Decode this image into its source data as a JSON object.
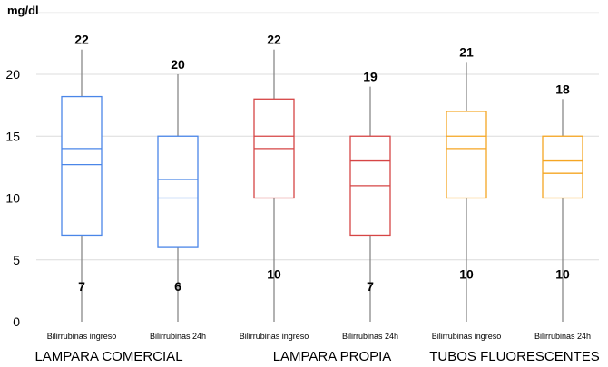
{
  "chart_data": {
    "type": "box",
    "unit_label": "mg/dl",
    "ylim": [
      0,
      25
    ],
    "yticks": [
      0,
      5,
      10,
      15,
      20
    ],
    "grid": true,
    "groups": [
      "LAMPARA COMERCIAL",
      "LAMPARA PROPIA",
      "TUBOS FLUORESCENTES"
    ],
    "boxes": [
      {
        "category": "Bilirrubinas ingreso",
        "group": 0,
        "color": "#4a86e8",
        "min": 0,
        "q1": 7,
        "median": 12.7,
        "mean": 14,
        "q3": 18.2,
        "max": 22,
        "labels": [
          "22",
          "7"
        ]
      },
      {
        "category": "Bilirrubinas 24h",
        "group": 0,
        "color": "#4a86e8",
        "min": 0,
        "q1": 6,
        "median": 10,
        "mean": 11.5,
        "q3": 15,
        "max": 20,
        "labels": [
          "20",
          "6"
        ]
      },
      {
        "category": "Bilirrubinas ingreso",
        "group": 1,
        "color": "#d64545",
        "min": 0,
        "q1": 10,
        "median": 14,
        "mean": 15,
        "q3": 18,
        "max": 22,
        "labels": [
          "22",
          "10"
        ]
      },
      {
        "category": "Bilirrubinas 24h",
        "group": 1,
        "color": "#d64545",
        "min": 0,
        "q1": 7,
        "median": 11,
        "mean": 13,
        "q3": 15,
        "max": 19,
        "labels": [
          "19",
          "7"
        ]
      },
      {
        "category": "Bilirrubinas ingreso",
        "group": 2,
        "color": "#f5a623",
        "min": 0,
        "q1": 10,
        "median": 14,
        "mean": 15,
        "q3": 17,
        "max": 21,
        "labels": [
          "21",
          "10"
        ]
      },
      {
        "category": "Bilirrubinas 24h",
        "group": 2,
        "color": "#f5a623",
        "min": 0,
        "q1": 10,
        "median": 12,
        "mean": 13,
        "q3": 15,
        "max": 18,
        "labels": [
          "18",
          "10"
        ]
      }
    ]
  }
}
